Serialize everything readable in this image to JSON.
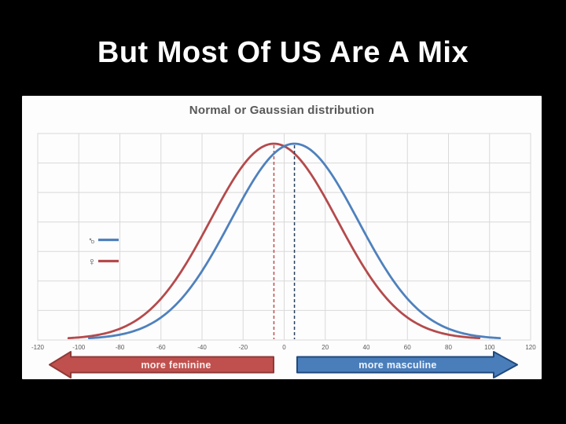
{
  "slide": {
    "title": "But Most Of US Are A Mix",
    "background_color": "#000000",
    "title_color": "#ffffff"
  },
  "chart_data": {
    "type": "line",
    "title": "Normal or Gaussian distribution",
    "title_color": "#595959",
    "xlabel": "",
    "ylabel": "",
    "xlim": [
      -120,
      120
    ],
    "x_ticks": [
      -120,
      -100,
      -80,
      -60,
      -40,
      -20,
      0,
      20,
      40,
      60,
      80,
      100,
      120
    ],
    "grid": true,
    "gridline_rows": 7,
    "grid_color": "#d9d9d9",
    "legend_position": "middle-left",
    "series": [
      {
        "name": "male",
        "legend_symbol": "♂",
        "color": "#4f81bd",
        "curve": "gaussian",
        "mean": 5,
        "sigma": 31,
        "peak_value": 1.0,
        "x_range": [
          -95,
          105
        ],
        "mean_line_style": "dashed",
        "mean_line_color": "#27405c"
      },
      {
        "name": "female",
        "legend_symbol": "♀",
        "color": "#b54a4c",
        "curve": "gaussian",
        "mean": -5,
        "sigma": 31,
        "peak_value": 1.0,
        "x_range": [
          -105,
          95
        ],
        "mean_line_style": "dashed",
        "mean_line_color": "#bf4e4e"
      }
    ]
  },
  "annotations": {
    "left_arrow": {
      "label": "more feminine",
      "direction": "left",
      "fill": "#c0504d",
      "border": "#8e3a38",
      "text_color": "#f7efee"
    },
    "right_arrow": {
      "label": "more masculine",
      "direction": "right",
      "fill": "#4a7ebb",
      "border": "#1f497d",
      "text_color": "#eff4fa"
    }
  }
}
